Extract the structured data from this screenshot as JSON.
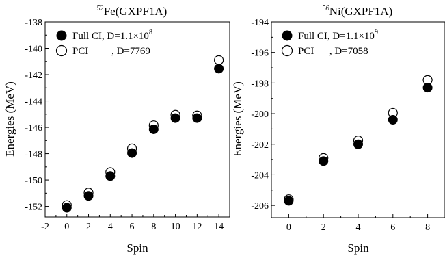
{
  "chart_data": [
    {
      "type": "scatter",
      "title_sup": "52",
      "title_main": "Fe(GXPF1A)",
      "xlabel": "Spin",
      "ylabel": "Energies (MeV)",
      "xlim": [
        -2,
        15
      ],
      "ylim": [
        -152.8,
        -138
      ],
      "xticks": [
        -2,
        0,
        2,
        4,
        6,
        8,
        10,
        12,
        14
      ],
      "yticks": [
        -152,
        -150,
        -148,
        -146,
        -144,
        -142,
        -140,
        -138
      ],
      "legend_position": "top-left",
      "series": [
        {
          "name": "Full CI, D=1.1×10",
          "name_sup": "8",
          "marker": "filled-circle",
          "x": [
            0,
            2,
            4,
            6,
            8,
            10,
            12,
            14
          ],
          "y": [
            -152.1,
            -151.2,
            -149.7,
            -147.95,
            -146.15,
            -145.3,
            -145.3,
            -141.55
          ]
        },
        {
          "name": "PCI         , D=7769",
          "marker": "open-circle",
          "x": [
            0,
            2,
            4,
            6,
            8,
            10,
            12,
            14
          ],
          "y": [
            -151.9,
            -150.95,
            -149.4,
            -147.6,
            -145.85,
            -145.05,
            -145.1,
            -140.9
          ]
        }
      ]
    },
    {
      "type": "scatter",
      "title_sup": "56",
      "title_main": "Ni(GXPF1A)",
      "xlabel": "Spin",
      "ylabel": "Energies (MeV)",
      "xlim": [
        -1,
        9
      ],
      "ylim": [
        -206.8,
        -194
      ],
      "xticks": [
        0,
        2,
        4,
        6,
        8
      ],
      "yticks": [
        -206,
        -204,
        -202,
        -200,
        -198,
        -196,
        -194
      ],
      "legend_position": "top-left",
      "series": [
        {
          "name": "Full CI, D=1.1×10",
          "name_sup": "9",
          "marker": "filled-circle",
          "x": [
            0,
            2,
            4,
            6,
            8
          ],
          "y": [
            -205.7,
            -203.1,
            -202.0,
            -200.4,
            -198.3
          ]
        },
        {
          "name": "PCI      , D=7058",
          "marker": "open-circle",
          "x": [
            0,
            2,
            4,
            6,
            8
          ],
          "y": [
            -205.6,
            -202.9,
            -201.75,
            -199.95,
            -197.8
          ]
        }
      ]
    }
  ]
}
